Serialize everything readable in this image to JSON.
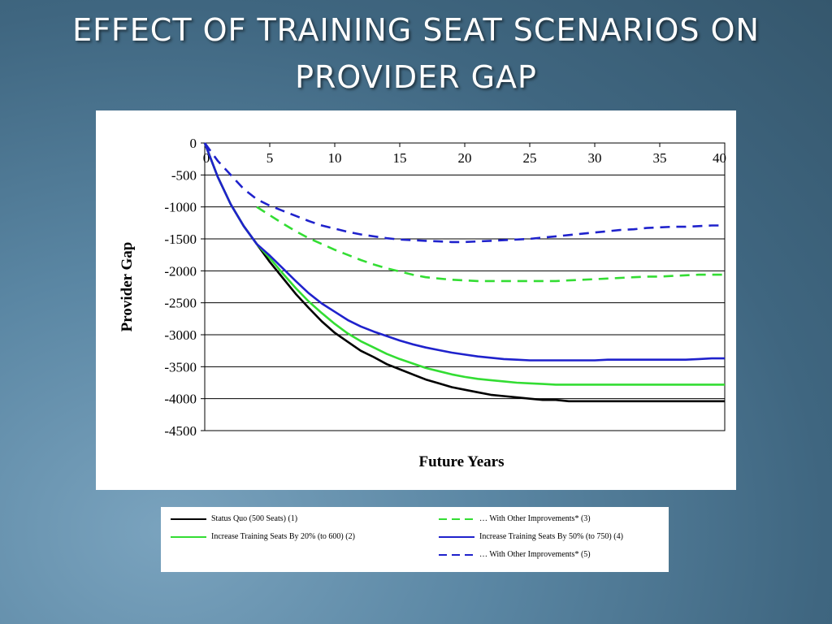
{
  "slide": {
    "title_line1": "EFFECT OF TRAINING SEAT SCENARIOS ON",
    "title_line2": "PROVIDER GAP"
  },
  "chart_data": {
    "type": "line",
    "title": "",
    "xlabel": "Future Years",
    "ylabel": "Provider Gap",
    "xlim": [
      0,
      40
    ],
    "ylim": [
      -4500,
      0
    ],
    "x_ticks": [
      0,
      5,
      10,
      15,
      20,
      25,
      30,
      35,
      40
    ],
    "y_ticks": [
      0,
      -500,
      -1000,
      -1500,
      -2000,
      -2500,
      -3000,
      -3500,
      -4000,
      -4500
    ],
    "grid": "horizontal",
    "legend_position": "below",
    "series": [
      {
        "name": "Status Quo (500 Seats) (1)",
        "color": "#000000",
        "dash": "solid",
        "x": [
          0,
          1,
          2,
          3,
          4,
          5,
          6,
          7,
          8,
          9,
          10,
          11,
          12,
          13,
          14,
          15,
          16,
          17,
          18,
          19,
          20,
          21,
          22,
          23,
          24,
          25,
          26,
          27,
          28,
          29,
          30,
          31,
          32,
          33,
          34,
          35,
          36,
          37,
          38,
          39,
          40
        ],
        "y": [
          0,
          -530,
          -960,
          -1300,
          -1580,
          -1860,
          -2110,
          -2360,
          -2580,
          -2790,
          -2970,
          -3110,
          -3250,
          -3350,
          -3460,
          -3540,
          -3620,
          -3700,
          -3760,
          -3820,
          -3860,
          -3900,
          -3940,
          -3960,
          -3980,
          -4000,
          -4020,
          -4020,
          -4040,
          -4040,
          -4040,
          -4040,
          -4040,
          -4040,
          -4040,
          -4040,
          -4040,
          -4040,
          -4040,
          -4040,
          -4040
        ]
      },
      {
        "name": "… With Other Improvements* (3)",
        "color": "#33dd33",
        "dash": "dashed",
        "x": [
          4,
          5,
          6,
          7,
          8,
          9,
          10,
          11,
          12,
          13,
          14,
          15,
          16,
          17,
          18,
          19,
          20,
          21,
          22,
          23,
          24,
          25,
          26,
          27,
          28,
          29,
          30,
          31,
          32,
          33,
          34,
          35,
          36,
          37,
          38,
          39,
          40
        ],
        "y": [
          -1000,
          -1130,
          -1260,
          -1380,
          -1490,
          -1580,
          -1670,
          -1750,
          -1830,
          -1900,
          -1960,
          -2010,
          -2060,
          -2100,
          -2120,
          -2140,
          -2150,
          -2160,
          -2160,
          -2160,
          -2160,
          -2160,
          -2160,
          -2160,
          -2150,
          -2140,
          -2130,
          -2120,
          -2110,
          -2100,
          -2090,
          -2090,
          -2080,
          -2070,
          -2060,
          -2060,
          -2060
        ]
      },
      {
        "name": "Increase Training Seats By 20% (to 600) (2)",
        "color": "#33dd33",
        "dash": "solid",
        "x": [
          0,
          1,
          2,
          3,
          4,
          5,
          6,
          7,
          8,
          9,
          10,
          11,
          12,
          13,
          14,
          15,
          16,
          17,
          18,
          19,
          20,
          21,
          22,
          23,
          24,
          25,
          26,
          27,
          28,
          29,
          30,
          31,
          32,
          33,
          34,
          35,
          36,
          37,
          38,
          39,
          40
        ],
        "y": [
          0,
          -530,
          -960,
          -1300,
          -1580,
          -1800,
          -2040,
          -2270,
          -2480,
          -2660,
          -2830,
          -2980,
          -3100,
          -3200,
          -3300,
          -3380,
          -3450,
          -3520,
          -3570,
          -3620,
          -3660,
          -3690,
          -3710,
          -3730,
          -3750,
          -3760,
          -3770,
          -3780,
          -3780,
          -3780,
          -3780,
          -3780,
          -3780,
          -3780,
          -3780,
          -3780,
          -3780,
          -3780,
          -3780,
          -3780,
          -3780
        ]
      },
      {
        "name": "Increase Training Seats By 50% (to 750) (4)",
        "color": "#1f22cc",
        "dash": "solid",
        "x": [
          0,
          1,
          2,
          3,
          4,
          5,
          6,
          7,
          8,
          9,
          10,
          11,
          12,
          13,
          14,
          15,
          16,
          17,
          18,
          19,
          20,
          21,
          22,
          23,
          24,
          25,
          26,
          27,
          28,
          29,
          30,
          31,
          32,
          33,
          34,
          35,
          36,
          37,
          38,
          39,
          40
        ],
        "y": [
          0,
          -530,
          -960,
          -1300,
          -1580,
          -1760,
          -1960,
          -2160,
          -2350,
          -2510,
          -2640,
          -2770,
          -2870,
          -2950,
          -3020,
          -3090,
          -3150,
          -3200,
          -3240,
          -3280,
          -3310,
          -3340,
          -3360,
          -3380,
          -3390,
          -3400,
          -3400,
          -3400,
          -3400,
          -3400,
          -3400,
          -3390,
          -3390,
          -3390,
          -3390,
          -3390,
          -3390,
          -3390,
          -3380,
          -3370,
          -3370
        ]
      },
      {
        "name": "… With Other Improvements* (5)",
        "color": "#1f22cc",
        "dash": "dashed",
        "x": [
          0,
          1,
          2,
          3,
          4,
          5,
          6,
          7,
          8,
          9,
          10,
          11,
          12,
          13,
          14,
          15,
          16,
          17,
          18,
          19,
          20,
          21,
          22,
          23,
          24,
          25,
          26,
          27,
          28,
          29,
          30,
          31,
          32,
          33,
          34,
          35,
          36,
          37,
          38,
          39,
          40
        ],
        "y": [
          0,
          -280,
          -500,
          -720,
          -880,
          -980,
          -1060,
          -1140,
          -1220,
          -1290,
          -1340,
          -1390,
          -1430,
          -1460,
          -1490,
          -1510,
          -1520,
          -1530,
          -1540,
          -1550,
          -1550,
          -1540,
          -1530,
          -1520,
          -1510,
          -1500,
          -1480,
          -1460,
          -1440,
          -1420,
          -1400,
          -1380,
          -1360,
          -1350,
          -1330,
          -1320,
          -1310,
          -1310,
          -1300,
          -1290,
          -1290
        ]
      }
    ]
  },
  "legend": {
    "items": [
      {
        "label": "Status Quo (500 Seats) (1)",
        "color": "#000000",
        "dash": "solid"
      },
      {
        "label": "… With Other Improvements* (3)",
        "color": "#33dd33",
        "dash": "dashed"
      },
      {
        "label": "Increase Training Seats By 20% (to 600) (2)",
        "color": "#33dd33",
        "dash": "solid"
      },
      {
        "label": "Increase Training Seats By 50% (to 750) (4)",
        "color": "#1f22cc",
        "dash": "solid"
      },
      {
        "label": "… With Other Improvements* (5)",
        "color": "#1f22cc",
        "dash": "dashed"
      }
    ]
  }
}
